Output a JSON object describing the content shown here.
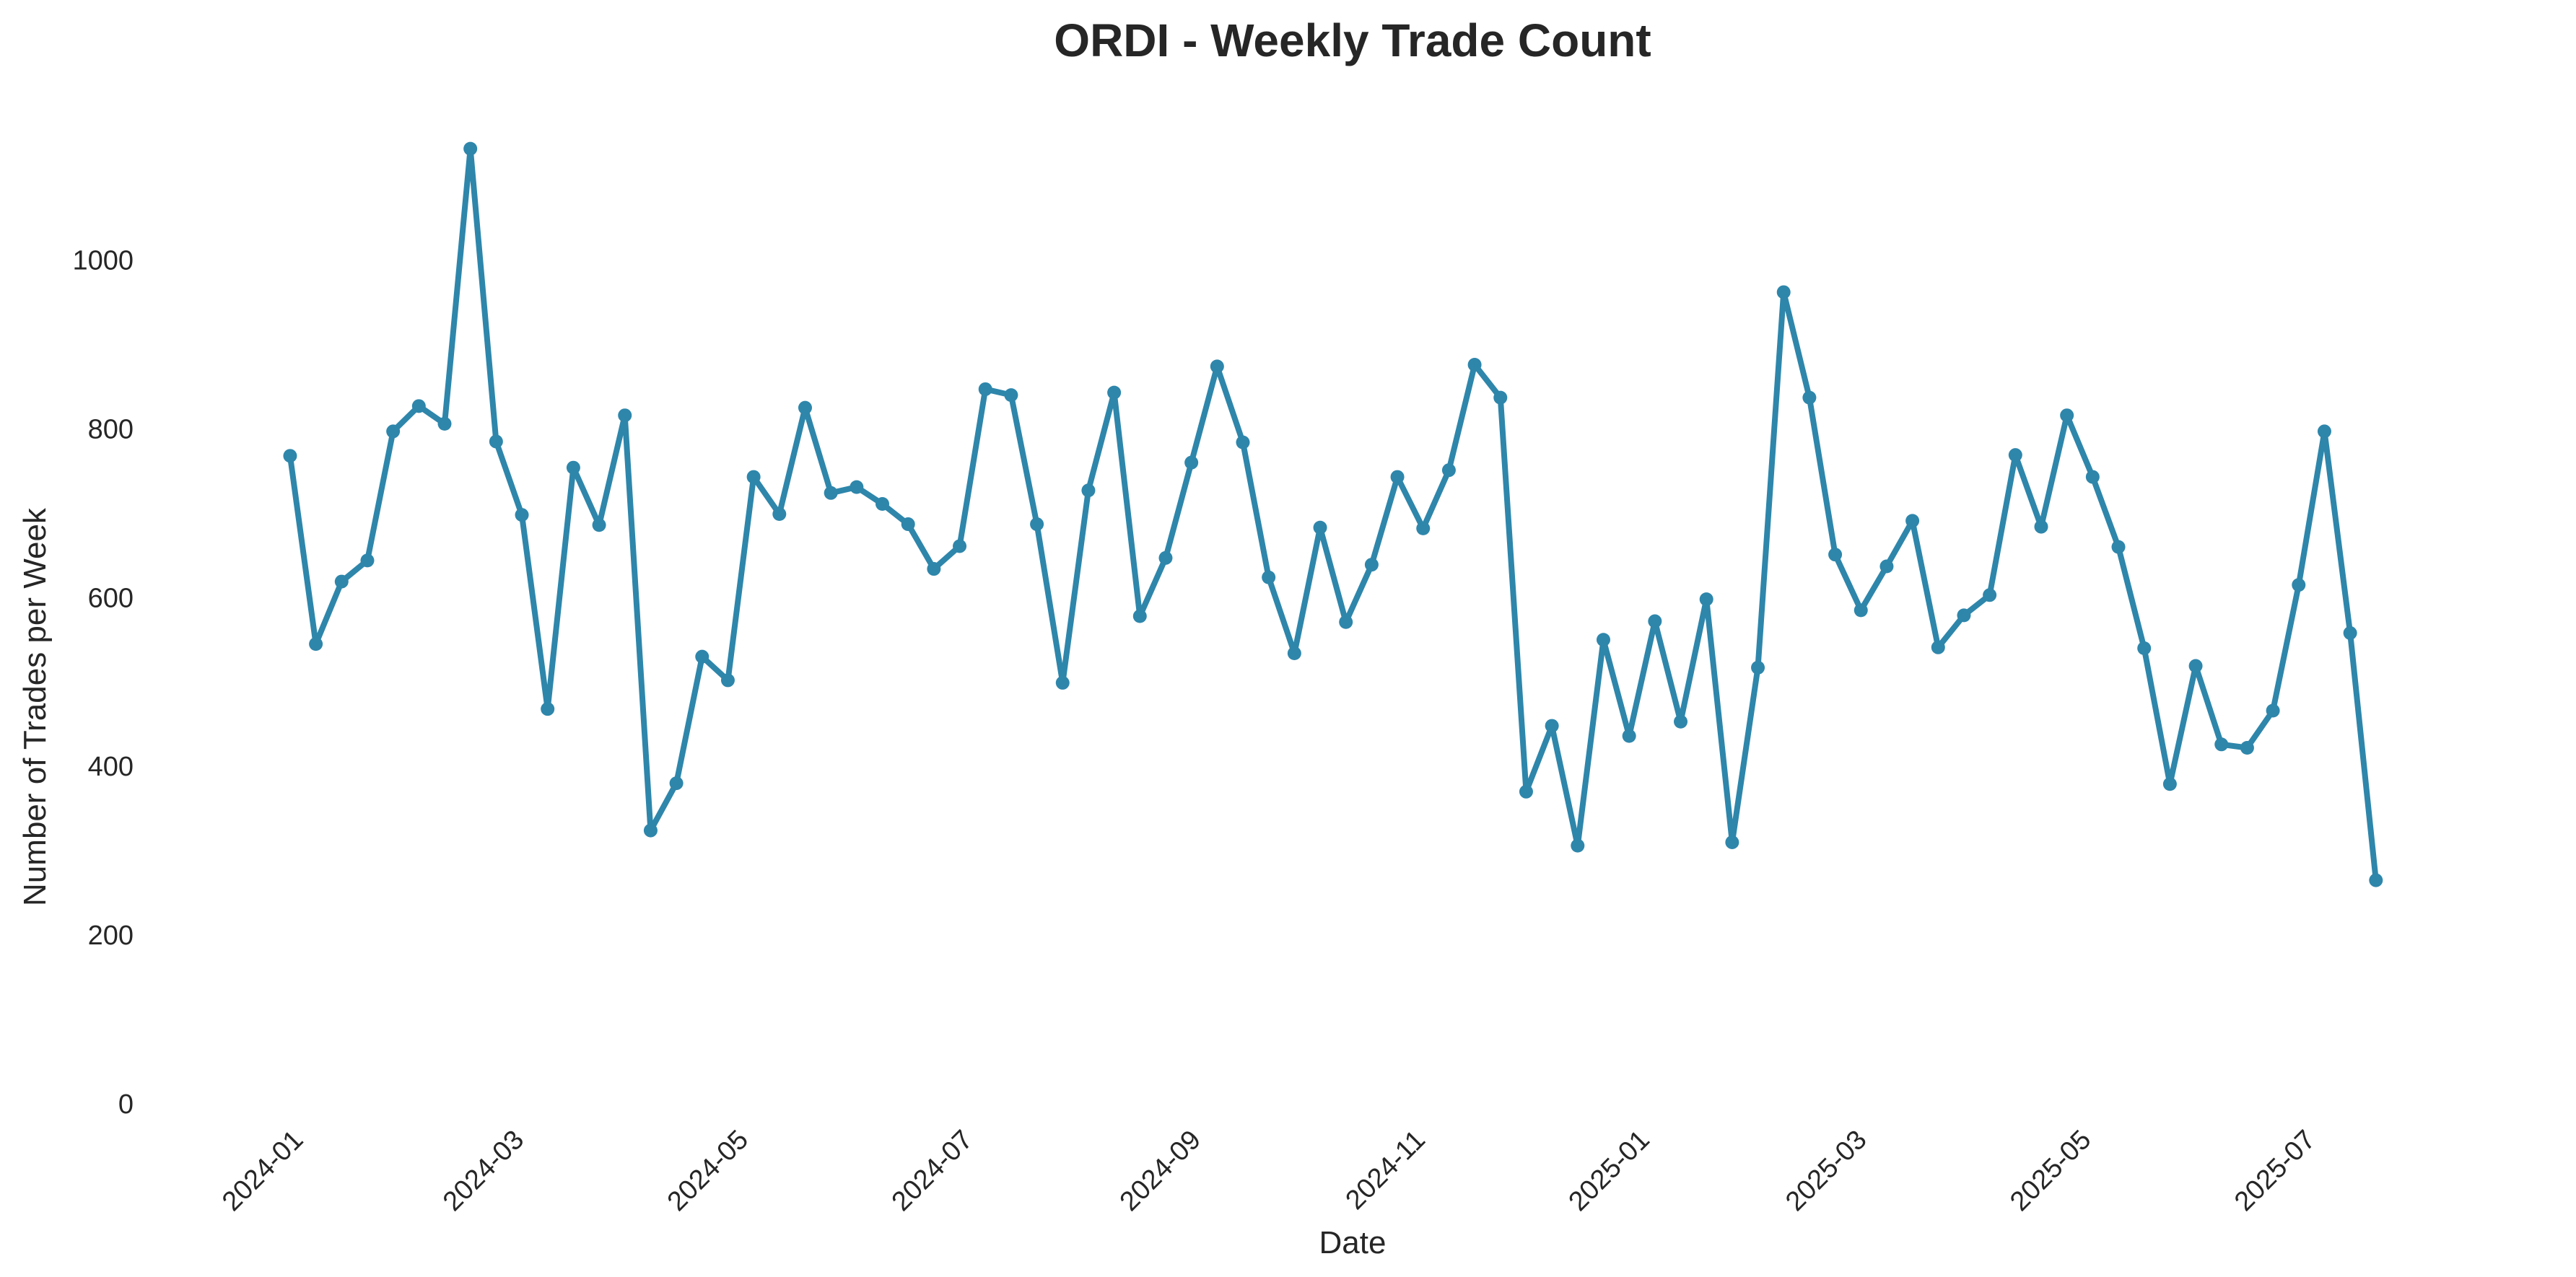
{
  "chart_data": {
    "type": "line",
    "title": "ORDI - Weekly Trade Count",
    "xlabel": "Date",
    "ylabel": "Number of Trades per Week",
    "ylim": [
      0,
      1180
    ],
    "xlim": [
      "2023-12-11",
      "2025-08-22"
    ],
    "y_ticks": [
      0,
      200,
      400,
      600,
      800,
      1000
    ],
    "x_ticks": [
      "2024-01-01",
      "2024-03-01",
      "2024-05-01",
      "2024-07-01",
      "2024-09-01",
      "2024-11-01",
      "2025-01-01",
      "2025-03-01",
      "2025-05-01",
      "2025-07-01"
    ],
    "x_tick_labels": [
      "2024-01",
      "2024-03",
      "2024-05",
      "2024-07",
      "2024-09",
      "2024-11",
      "2025-01",
      "2025-03",
      "2025-05",
      "2025-07"
    ],
    "grid": false,
    "marker": "circle",
    "series": [
      {
        "color": "#2e86ab",
        "x": [
          "2023-12-31",
          "2024-01-07",
          "2024-01-14",
          "2024-01-21",
          "2024-01-28",
          "2024-02-04",
          "2024-02-11",
          "2024-02-18",
          "2024-02-25",
          "2024-03-03",
          "2024-03-10",
          "2024-03-17",
          "2024-03-24",
          "2024-03-31",
          "2024-04-07",
          "2024-04-14",
          "2024-04-21",
          "2024-04-28",
          "2024-05-05",
          "2024-05-12",
          "2024-05-19",
          "2024-05-26",
          "2024-06-02",
          "2024-06-09",
          "2024-06-16",
          "2024-06-23",
          "2024-06-30",
          "2024-07-07",
          "2024-07-14",
          "2024-07-21",
          "2024-07-28",
          "2024-08-04",
          "2024-08-11",
          "2024-08-18",
          "2024-08-25",
          "2024-09-01",
          "2024-09-08",
          "2024-09-15",
          "2024-09-22",
          "2024-09-29",
          "2024-10-06",
          "2024-10-13",
          "2024-10-20",
          "2024-10-27",
          "2024-11-03",
          "2024-11-10",
          "2024-11-17",
          "2024-11-24",
          "2024-12-01",
          "2024-12-08",
          "2024-12-15",
          "2024-12-22",
          "2024-12-29",
          "2025-01-05",
          "2025-01-12",
          "2025-01-19",
          "2025-01-26",
          "2025-02-02",
          "2025-02-09",
          "2025-02-16",
          "2025-02-23",
          "2025-03-02",
          "2025-03-09",
          "2025-03-16",
          "2025-03-23",
          "2025-03-30",
          "2025-04-06",
          "2025-04-13",
          "2025-04-20",
          "2025-04-27",
          "2025-05-04",
          "2025-05-11",
          "2025-05-18",
          "2025-05-25",
          "2025-06-01",
          "2025-06-08",
          "2025-06-15",
          "2025-06-22",
          "2025-06-29",
          "2025-07-06",
          "2025-07-13",
          "2025-07-20"
        ],
        "y": [
          768,
          545,
          619,
          644,
          797,
          827,
          806,
          1132,
          785,
          698,
          468,
          754,
          686,
          816,
          324,
          380,
          530,
          502,
          743,
          699,
          825,
          724,
          731,
          711,
          687,
          634,
          661,
          847,
          840,
          687,
          499,
          727,
          843,
          578,
          647,
          760,
          874,
          784,
          624,
          534,
          683,
          571,
          639,
          743,
          682,
          751,
          876,
          837,
          370,
          448,
          306,
          550,
          436,
          572,
          453,
          598,
          310,
          517,
          962,
          837,
          651,
          585,
          637,
          691,
          541,
          579,
          603,
          769,
          684,
          816,
          743,
          660,
          540,
          379,
          519,
          426,
          422,
          466,
          615,
          797,
          558,
          265
        ]
      }
    ]
  }
}
